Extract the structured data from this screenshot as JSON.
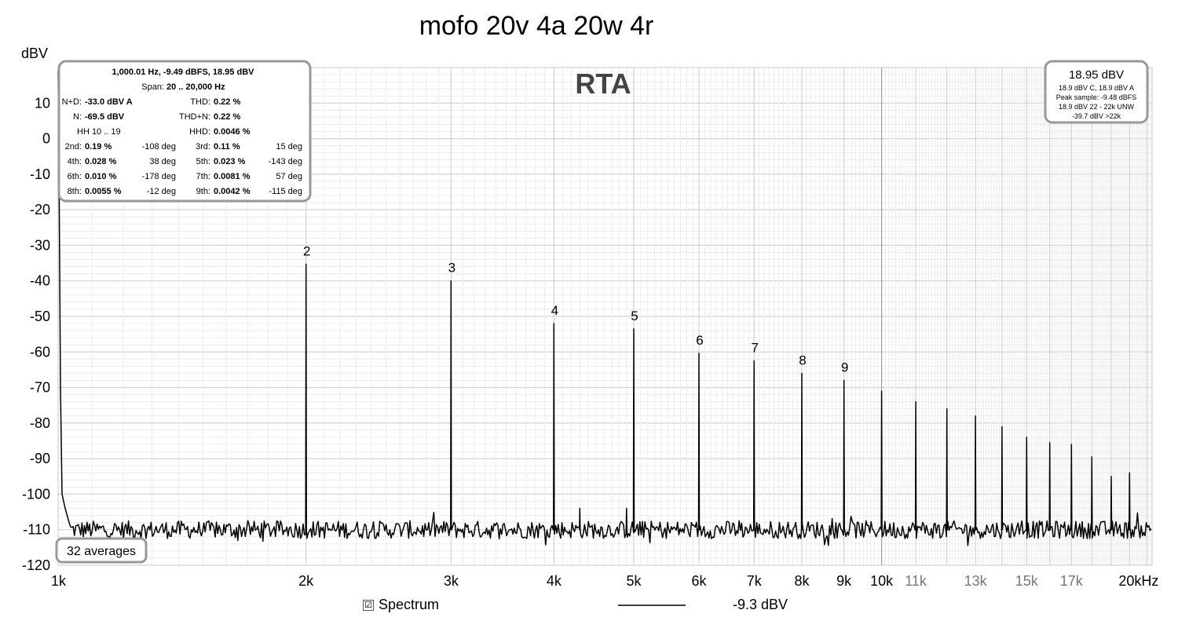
{
  "chart_data": {
    "type": "line",
    "title": "mofo 20v 4a 20w 4r",
    "watermark": "RTA",
    "ylabel": "dBV",
    "xunit": "kHz",
    "xscale": "log",
    "xlim": [
      1000,
      21300
    ],
    "ylim": [
      -120,
      20
    ],
    "grid": true,
    "yticks": [
      10,
      0,
      -10,
      -20,
      -30,
      -40,
      -50,
      -60,
      -70,
      -80,
      -90,
      -100,
      -110,
      -120
    ],
    "xticks_major": [
      {
        "hz": 1000,
        "label": "1k"
      },
      {
        "hz": 2000,
        "label": "2k"
      },
      {
        "hz": 3000,
        "label": "3k"
      },
      {
        "hz": 4000,
        "label": "4k"
      },
      {
        "hz": 5000,
        "label": "5k"
      },
      {
        "hz": 6000,
        "label": "6k"
      },
      {
        "hz": 7000,
        "label": "7k"
      },
      {
        "hz": 8000,
        "label": "8k"
      },
      {
        "hz": 9000,
        "label": "9k"
      },
      {
        "hz": 10000,
        "label": "10k"
      }
    ],
    "xticks_minor": [
      {
        "hz": 11000,
        "label": "11k"
      },
      {
        "hz": 13000,
        "label": "13k"
      },
      {
        "hz": 15000,
        "label": "15k"
      },
      {
        "hz": 17000,
        "label": "17k"
      },
      {
        "hz": 20000,
        "label": "20kHz"
      }
    ],
    "noise_floor_dbv": -110,
    "fundamental": {
      "hz": 1000,
      "dbv": 18.95
    },
    "harmonics": [
      {
        "n": 2,
        "hz": 2000,
        "dbv": -35.3,
        "label": "2"
      },
      {
        "n": 3,
        "hz": 3000,
        "dbv": -40,
        "label": "3"
      },
      {
        "n": 4,
        "hz": 4000,
        "dbv": -52,
        "label": "4"
      },
      {
        "n": 5,
        "hz": 5000,
        "dbv": -53.5,
        "label": "5"
      },
      {
        "n": 6,
        "hz": 6000,
        "dbv": -60.4,
        "label": "6"
      },
      {
        "n": 7,
        "hz": 7000,
        "dbv": -62.5,
        "label": "7"
      },
      {
        "n": 8,
        "hz": 8000,
        "dbv": -66,
        "label": "8"
      },
      {
        "n": 9,
        "hz": 9000,
        "dbv": -68,
        "label": "9"
      },
      {
        "n": 10,
        "hz": 10000,
        "dbv": -71,
        "label": ""
      },
      {
        "n": 11,
        "hz": 11000,
        "dbv": -74,
        "label": ""
      },
      {
        "n": 12,
        "hz": 12000,
        "dbv": -76,
        "label": ""
      },
      {
        "n": 13,
        "hz": 13000,
        "dbv": -78,
        "label": ""
      },
      {
        "n": 14,
        "hz": 14000,
        "dbv": -81,
        "label": ""
      },
      {
        "n": 15,
        "hz": 15000,
        "dbv": -84,
        "label": ""
      },
      {
        "n": 16,
        "hz": 16000,
        "dbv": -85.5,
        "label": ""
      },
      {
        "n": 17,
        "hz": 17000,
        "dbv": -86,
        "label": ""
      },
      {
        "n": 18,
        "hz": 18000,
        "dbv": -89.5,
        "label": ""
      },
      {
        "n": 19,
        "hz": 19000,
        "dbv": -95,
        "label": ""
      },
      {
        "n": 20,
        "hz": 20000,
        "dbv": -94,
        "label": ""
      }
    ],
    "spurs": [
      {
        "hz": 4300,
        "dbv": -104
      },
      {
        "hz": 4900,
        "dbv": -104
      }
    ],
    "series": [
      {
        "name": "Spectrum",
        "value_label": "-9.3 dBV",
        "color": "#000000"
      }
    ]
  },
  "info_box": {
    "header": "1,000.01 Hz, -9.49 dBFS, 18.95 dBV",
    "span_label": "Span:",
    "span_value": "20 .. 20,000 Hz",
    "nd_label": "N+D:",
    "nd_value": "-33.0 dBV A",
    "thd_label": "THD:",
    "thd_value": "0.22 %",
    "n_label": "N:",
    "n_value": "-69.5 dBV",
    "thdn_label": "THD+N:",
    "thdn_value": "0.22 %",
    "hh_label": "HH 10 .. 19",
    "hhd_label": "HHD:",
    "hhd_value": "0.0046 %",
    "rows": [
      {
        "l1": "2nd:",
        "v1": "0.19 %",
        "d1": "-108 deg",
        "l2": "3rd:",
        "v2": "0.11 %",
        "d2": "15 deg"
      },
      {
        "l1": "4th:",
        "v1": "0.028 %",
        "d1": "38 deg",
        "l2": "5th:",
        "v2": "0.023 %",
        "d2": "-143 deg"
      },
      {
        "l1": "6th:",
        "v1": "0.010 %",
        "d1": "-178 deg",
        "l2": "7th:",
        "v2": "0.0081 %",
        "d2": "57 deg"
      },
      {
        "l1": "8th:",
        "v1": "0.0055 %",
        "d1": "-12 deg",
        "l2": "9th:",
        "v2": "0.0042 %",
        "d2": "-115 deg"
      }
    ]
  },
  "level_box": {
    "main": "18.95 dBV",
    "line1": "18.9 dBV C, 18.9 dBV A",
    "line2": "Peak sample: -9.48 dBFS",
    "line3": "18.9 dBV 22 - 22k UNW",
    "line4": "-39.7 dBV >22k"
  },
  "averages_box": {
    "label": "32 averages"
  },
  "legend": {
    "checkbox_mark": "☑"
  }
}
